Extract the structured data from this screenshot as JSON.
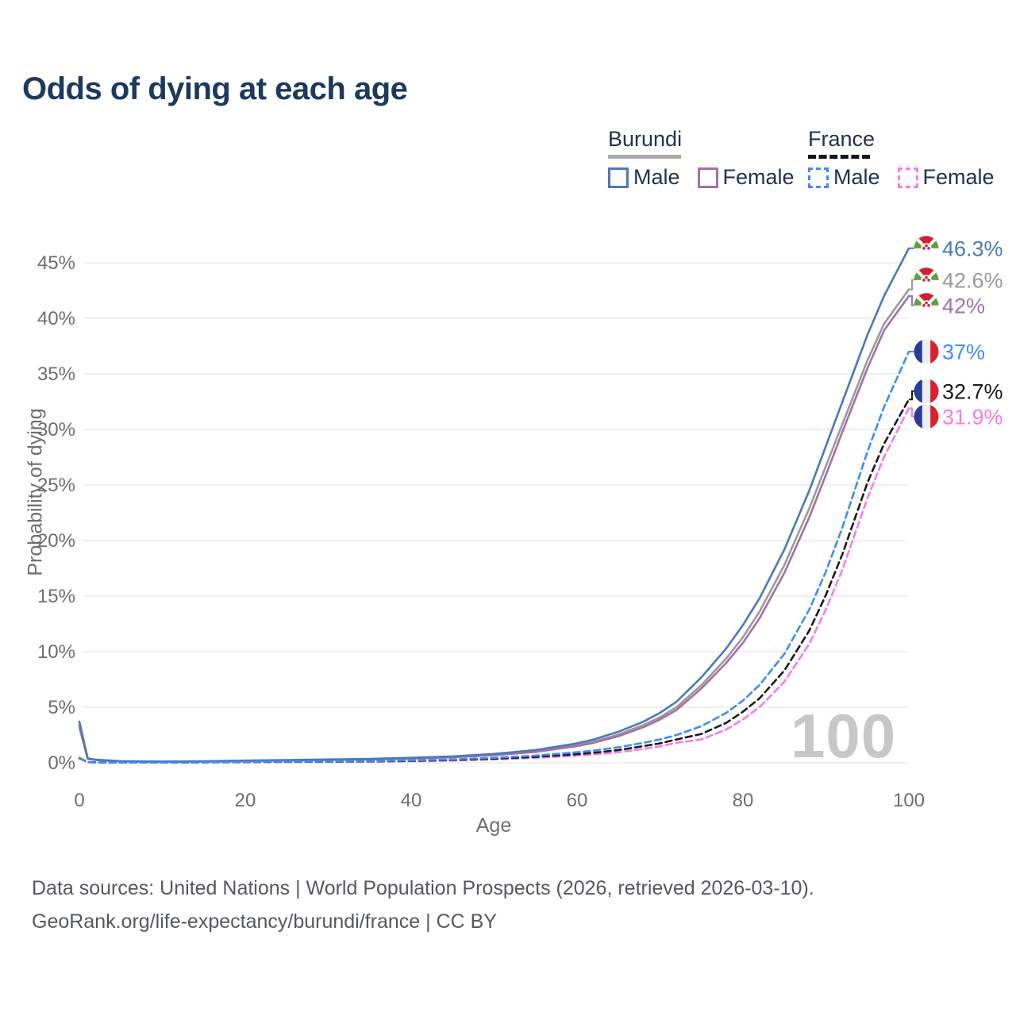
{
  "title": "Odds of dying at each age",
  "legend": {
    "groups": [
      {
        "country": "Burundi",
        "line_style": "solid",
        "underline_color": "#a9a9a9",
        "items": [
          {
            "label": "Male",
            "color": "#4a79b8"
          },
          {
            "label": "Female",
            "color": "#a46fa8"
          }
        ]
      },
      {
        "country": "France",
        "line_style": "dashed",
        "underline_color": "#151515",
        "items": [
          {
            "label": "Male",
            "color": "#3e8df2"
          },
          {
            "label": "Female",
            "color": "#f87ae8"
          }
        ]
      }
    ]
  },
  "watermark": "100",
  "footer": {
    "line1": "Data sources: United Nations | World Population Prospects (2026, retrieved 2026-03-10).",
    "line2": "GeoRank.org/life-expectancy/burundi/france | CC BY"
  },
  "chart_data": {
    "type": "line",
    "title": "Odds of dying at each age",
    "xlabel": "Age",
    "ylabel": "Probability of dying",
    "xlim": [
      0,
      100
    ],
    "ylim": [
      0,
      47
    ],
    "x_ticks": [
      0,
      20,
      40,
      60,
      80,
      100
    ],
    "y_ticks": [
      0,
      5,
      10,
      15,
      20,
      25,
      30,
      35,
      40,
      45
    ],
    "grid": true,
    "legend_position": "top-right",
    "series": [
      {
        "name": "Burundi Male",
        "country": "burundi",
        "dash": false,
        "color": "#4a79b8",
        "end_label": "46.3%",
        "points": [
          [
            0,
            3.7
          ],
          [
            1,
            0.4
          ],
          [
            2,
            0.28
          ],
          [
            5,
            0.15
          ],
          [
            10,
            0.11
          ],
          [
            15,
            0.14
          ],
          [
            20,
            0.2
          ],
          [
            25,
            0.25
          ],
          [
            30,
            0.3
          ],
          [
            35,
            0.36
          ],
          [
            40,
            0.45
          ],
          [
            45,
            0.58
          ],
          [
            50,
            0.8
          ],
          [
            55,
            1.15
          ],
          [
            60,
            1.75
          ],
          [
            62,
            2.1
          ],
          [
            65,
            2.8
          ],
          [
            68,
            3.7
          ],
          [
            70,
            4.5
          ],
          [
            72,
            5.5
          ],
          [
            75,
            7.7
          ],
          [
            78,
            10.3
          ],
          [
            80,
            12.4
          ],
          [
            82,
            14.8
          ],
          [
            85,
            19.2
          ],
          [
            88,
            24.5
          ],
          [
            90,
            28.5
          ],
          [
            92,
            32.5
          ],
          [
            95,
            38.5
          ],
          [
            97,
            42.0
          ],
          [
            100,
            46.3
          ]
        ]
      },
      {
        "name": "Burundi",
        "country": "burundi",
        "dash": false,
        "color": "#9a9a9a",
        "end_label": "42.6%",
        "points": [
          [
            0,
            3.45
          ],
          [
            1,
            0.37
          ],
          [
            2,
            0.26
          ],
          [
            5,
            0.14
          ],
          [
            10,
            0.1
          ],
          [
            15,
            0.13
          ],
          [
            20,
            0.18
          ],
          [
            25,
            0.22
          ],
          [
            30,
            0.27
          ],
          [
            35,
            0.33
          ],
          [
            40,
            0.41
          ],
          [
            45,
            0.53
          ],
          [
            50,
            0.73
          ],
          [
            55,
            1.05
          ],
          [
            60,
            1.6
          ],
          [
            62,
            1.9
          ],
          [
            65,
            2.55
          ],
          [
            68,
            3.4
          ],
          [
            70,
            4.1
          ],
          [
            72,
            5.0
          ],
          [
            75,
            7.0
          ],
          [
            78,
            9.4
          ],
          [
            80,
            11.3
          ],
          [
            82,
            13.6
          ],
          [
            85,
            17.8
          ],
          [
            88,
            22.9
          ],
          [
            90,
            26.7
          ],
          [
            92,
            30.5
          ],
          [
            95,
            36.2
          ],
          [
            97,
            39.5
          ],
          [
            100,
            42.6
          ]
        ]
      },
      {
        "name": "Burundi Female",
        "country": "burundi",
        "dash": false,
        "color": "#a46fa8",
        "end_label": "42%",
        "points": [
          [
            0,
            3.2
          ],
          [
            1,
            0.34
          ],
          [
            2,
            0.24
          ],
          [
            5,
            0.13
          ],
          [
            10,
            0.095
          ],
          [
            15,
            0.12
          ],
          [
            20,
            0.16
          ],
          [
            25,
            0.2
          ],
          [
            30,
            0.25
          ],
          [
            35,
            0.3
          ],
          [
            40,
            0.38
          ],
          [
            45,
            0.49
          ],
          [
            50,
            0.68
          ],
          [
            55,
            0.98
          ],
          [
            60,
            1.5
          ],
          [
            62,
            1.8
          ],
          [
            65,
            2.4
          ],
          [
            68,
            3.2
          ],
          [
            70,
            3.9
          ],
          [
            72,
            4.75
          ],
          [
            75,
            6.7
          ],
          [
            78,
            9.0
          ],
          [
            80,
            10.8
          ],
          [
            82,
            13.0
          ],
          [
            85,
            17.1
          ],
          [
            88,
            22.1
          ],
          [
            90,
            25.9
          ],
          [
            92,
            29.8
          ],
          [
            95,
            35.5
          ],
          [
            97,
            38.9
          ],
          [
            100,
            42.0
          ]
        ]
      },
      {
        "name": "France Male",
        "country": "france",
        "dash": true,
        "color": "#3e8df2",
        "end_label": "37%",
        "points": [
          [
            0,
            0.45
          ],
          [
            1,
            0.06
          ],
          [
            2,
            0.04
          ],
          [
            5,
            0.02
          ],
          [
            10,
            0.02
          ],
          [
            15,
            0.05
          ],
          [
            20,
            0.09
          ],
          [
            25,
            0.11
          ],
          [
            30,
            0.13
          ],
          [
            35,
            0.16
          ],
          [
            40,
            0.21
          ],
          [
            45,
            0.3
          ],
          [
            50,
            0.45
          ],
          [
            55,
            0.65
          ],
          [
            60,
            0.95
          ],
          [
            62,
            1.1
          ],
          [
            65,
            1.4
          ],
          [
            68,
            1.8
          ],
          [
            70,
            2.1
          ],
          [
            72,
            2.5
          ],
          [
            75,
            3.3
          ],
          [
            78,
            4.5
          ],
          [
            80,
            5.6
          ],
          [
            82,
            7.0
          ],
          [
            85,
            9.8
          ],
          [
            88,
            13.8
          ],
          [
            90,
            17.2
          ],
          [
            92,
            21.2
          ],
          [
            95,
            28.0
          ],
          [
            97,
            32.0
          ],
          [
            100,
            37.0
          ]
        ]
      },
      {
        "name": "France",
        "country": "france",
        "dash": true,
        "color": "#1a1a1a",
        "end_label": "32.7%",
        "points": [
          [
            0,
            0.42
          ],
          [
            1,
            0.055
          ],
          [
            2,
            0.035
          ],
          [
            5,
            0.018
          ],
          [
            10,
            0.018
          ],
          [
            15,
            0.04
          ],
          [
            20,
            0.07
          ],
          [
            25,
            0.09
          ],
          [
            30,
            0.11
          ],
          [
            35,
            0.13
          ],
          [
            40,
            0.17
          ],
          [
            45,
            0.25
          ],
          [
            50,
            0.37
          ],
          [
            55,
            0.53
          ],
          [
            60,
            0.78
          ],
          [
            62,
            0.9
          ],
          [
            65,
            1.15
          ],
          [
            68,
            1.5
          ],
          [
            70,
            1.75
          ],
          [
            72,
            2.1
          ],
          [
            75,
            2.6
          ],
          [
            78,
            3.6
          ],
          [
            80,
            4.6
          ],
          [
            82,
            5.8
          ],
          [
            85,
            8.3
          ],
          [
            88,
            11.9
          ],
          [
            90,
            15.1
          ],
          [
            92,
            18.8
          ],
          [
            95,
            25.2
          ],
          [
            97,
            28.7
          ],
          [
            100,
            32.7
          ]
        ]
      },
      {
        "name": "France Female",
        "country": "france",
        "dash": true,
        "color": "#f87ae8",
        "end_label": "31.9%",
        "points": [
          [
            0,
            0.4
          ],
          [
            1,
            0.05
          ],
          [
            2,
            0.03
          ],
          [
            5,
            0.015
          ],
          [
            10,
            0.015
          ],
          [
            15,
            0.03
          ],
          [
            20,
            0.05
          ],
          [
            25,
            0.065
          ],
          [
            30,
            0.085
          ],
          [
            35,
            0.105
          ],
          [
            40,
            0.14
          ],
          [
            45,
            0.2
          ],
          [
            50,
            0.3
          ],
          [
            55,
            0.44
          ],
          [
            60,
            0.64
          ],
          [
            62,
            0.75
          ],
          [
            65,
            0.95
          ],
          [
            68,
            1.25
          ],
          [
            70,
            1.48
          ],
          [
            72,
            1.8
          ],
          [
            75,
            2.1
          ],
          [
            78,
            3.0
          ],
          [
            80,
            3.9
          ],
          [
            82,
            5.0
          ],
          [
            85,
            7.3
          ],
          [
            88,
            10.7
          ],
          [
            90,
            13.8
          ],
          [
            92,
            17.4
          ],
          [
            95,
            23.8
          ],
          [
            97,
            27.5
          ],
          [
            100,
            31.9
          ]
        ]
      }
    ]
  }
}
